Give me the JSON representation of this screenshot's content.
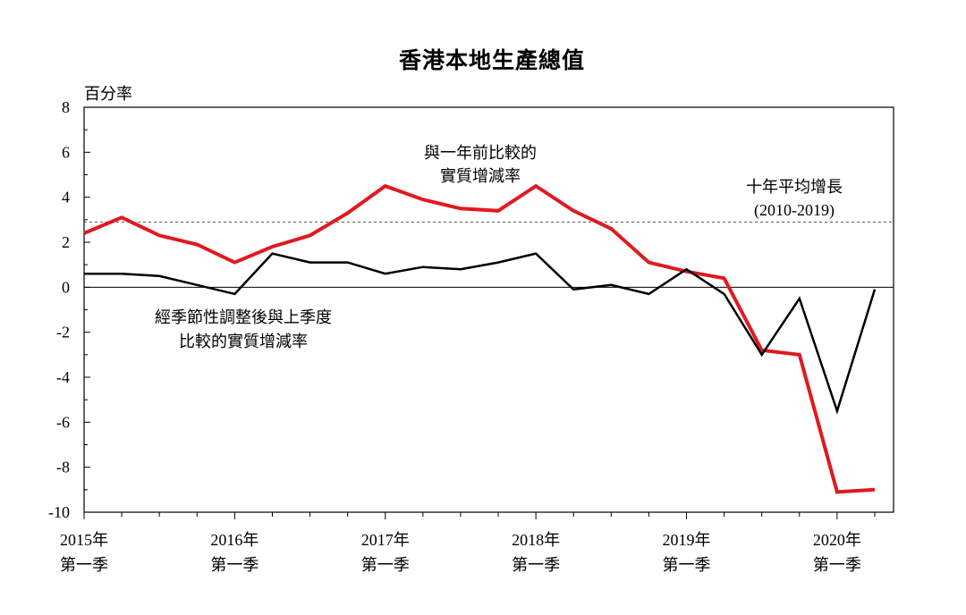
{
  "chart_data": {
    "type": "line",
    "title": "香港本地生產總值",
    "ylabel": "百分率",
    "ylim": [
      -10,
      8
    ],
    "yticks": [
      8,
      6,
      4,
      2,
      0,
      -2,
      -4,
      -6,
      -8,
      -10
    ],
    "ytick_labels": [
      "8",
      "6",
      "4",
      "2",
      "0",
      "-2",
      "-4",
      "-6",
      "-8",
      "-10"
    ],
    "x": [
      "2015Q1",
      "2015Q2",
      "2015Q3",
      "2015Q4",
      "2016Q1",
      "2016Q2",
      "2016Q3",
      "2016Q4",
      "2017Q1",
      "2017Q2",
      "2017Q3",
      "2017Q4",
      "2018Q1",
      "2018Q2",
      "2018Q3",
      "2018Q4",
      "2019Q1",
      "2019Q2",
      "2019Q3",
      "2019Q4",
      "2020Q1",
      "2020Q2"
    ],
    "xtick_labels": [
      {
        "year": "2015年",
        "quarter": "第一季"
      },
      {
        "year": "2016年",
        "quarter": "第一季"
      },
      {
        "year": "2017年",
        "quarter": "第一季"
      },
      {
        "year": "2018年",
        "quarter": "第一季"
      },
      {
        "year": "2019年",
        "quarter": "第一季"
      },
      {
        "year": "2020年",
        "quarter": "第一季"
      }
    ],
    "series": [
      {
        "name": "與一年前比較的實質增減率",
        "color": "#e0191f",
        "values": [
          2.4,
          3.1,
          2.3,
          1.9,
          1.1,
          1.8,
          2.3,
          3.3,
          4.5,
          3.9,
          3.5,
          3.4,
          4.5,
          3.4,
          2.6,
          1.1,
          0.7,
          0.4,
          -2.8,
          -3.0,
          -9.1,
          -9.0
        ]
      },
      {
        "name": "經季節性調整後與上季度比較的實質增減率",
        "color": "#000000",
        "values": [
          0.6,
          0.6,
          0.5,
          0.1,
          -0.3,
          1.5,
          1.1,
          1.1,
          0.6,
          0.9,
          0.8,
          1.1,
          1.5,
          -0.1,
          0.1,
          -0.3,
          0.8,
          -0.3,
          -3.0,
          -0.5,
          -5.5,
          -0.1
        ]
      }
    ],
    "reference_line": {
      "label_line1": "十年平均增長",
      "label_line2": "(2010-2019)",
      "value": 2.9,
      "style": "dashed"
    },
    "annotations": {
      "red_line1": "與一年前比較的",
      "red_line2": "實質增減率",
      "black_line1": "經季節性調整後與上季度",
      "black_line2": "比較的實質增減率"
    },
    "grid": false
  }
}
